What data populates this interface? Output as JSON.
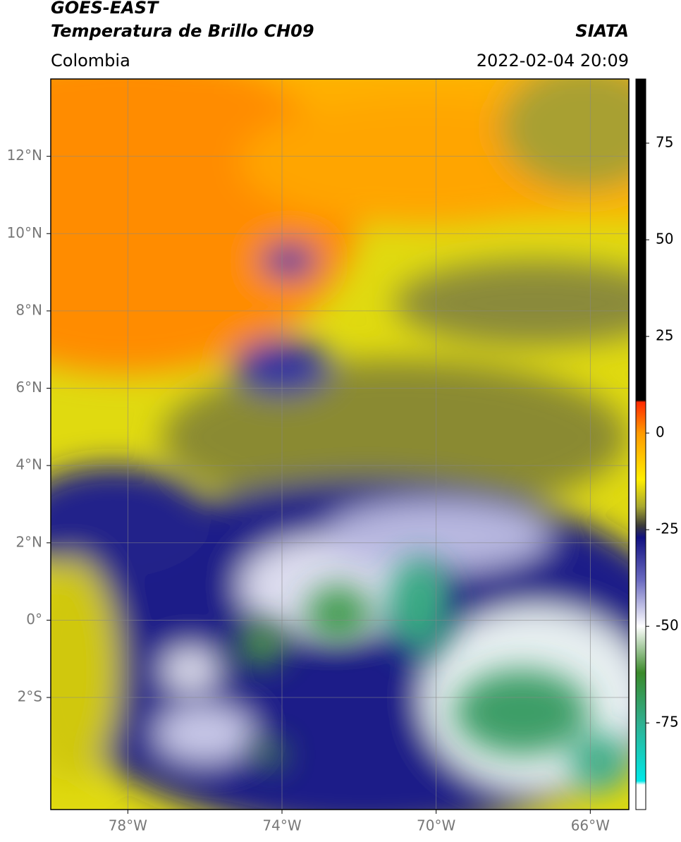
{
  "chart_data": {
    "type": "map",
    "title": "GOES-EAST",
    "subtitle": "Temperatura de Brillo CH09",
    "region": "Colombia",
    "source": "SIATA",
    "datetime": "2022-02-04 20:09",
    "xlim": [
      -80,
      -65
    ],
    "ylim": [
      -4.9,
      14
    ],
    "xticks": [
      {
        "value": -78,
        "label": "78°W"
      },
      {
        "value": -74,
        "label": "74°W"
      },
      {
        "value": -70,
        "label": "70°W"
      },
      {
        "value": -66,
        "label": "66°W"
      }
    ],
    "yticks": [
      {
        "value": -2,
        "label": "2°S"
      },
      {
        "value": 0,
        "label": "0°"
      },
      {
        "value": 2,
        "label": "2°N"
      },
      {
        "value": 4,
        "label": "4°N"
      },
      {
        "value": 6,
        "label": "6°N"
      },
      {
        "value": 8,
        "label": "8°N"
      },
      {
        "value": 10,
        "label": "10°N"
      },
      {
        "value": 12,
        "label": "12°N"
      }
    ],
    "grid": true,
    "colorbar": {
      "lim": [
        -97.4,
        91.6
      ],
      "ticks": [
        -75,
        -50,
        -25,
        0,
        25,
        50,
        75
      ],
      "stops": [
        {
          "value": 91.6,
          "color": "#000000"
        },
        {
          "value": 8.5,
          "color": "#000000"
        },
        {
          "value": 8,
          "color": "#ff2a00"
        },
        {
          "value": 0,
          "color": "#ff9a00"
        },
        {
          "value": -12,
          "color": "#ffee00"
        },
        {
          "value": -19,
          "color": "#a8a830"
        },
        {
          "value": -24,
          "color": "#3a3a3a"
        },
        {
          "value": -27,
          "color": "#101080"
        },
        {
          "value": -38,
          "color": "#6a6ac0"
        },
        {
          "value": -50,
          "color": "#ffffff"
        },
        {
          "value": -62,
          "color": "#3a8a2a"
        },
        {
          "value": -75,
          "color": "#30b090"
        },
        {
          "value": -90,
          "color": "#00e8e8"
        },
        {
          "value": -91,
          "color": "#ffffff"
        },
        {
          "value": -97.4,
          "color": "#ffffff"
        }
      ]
    }
  }
}
